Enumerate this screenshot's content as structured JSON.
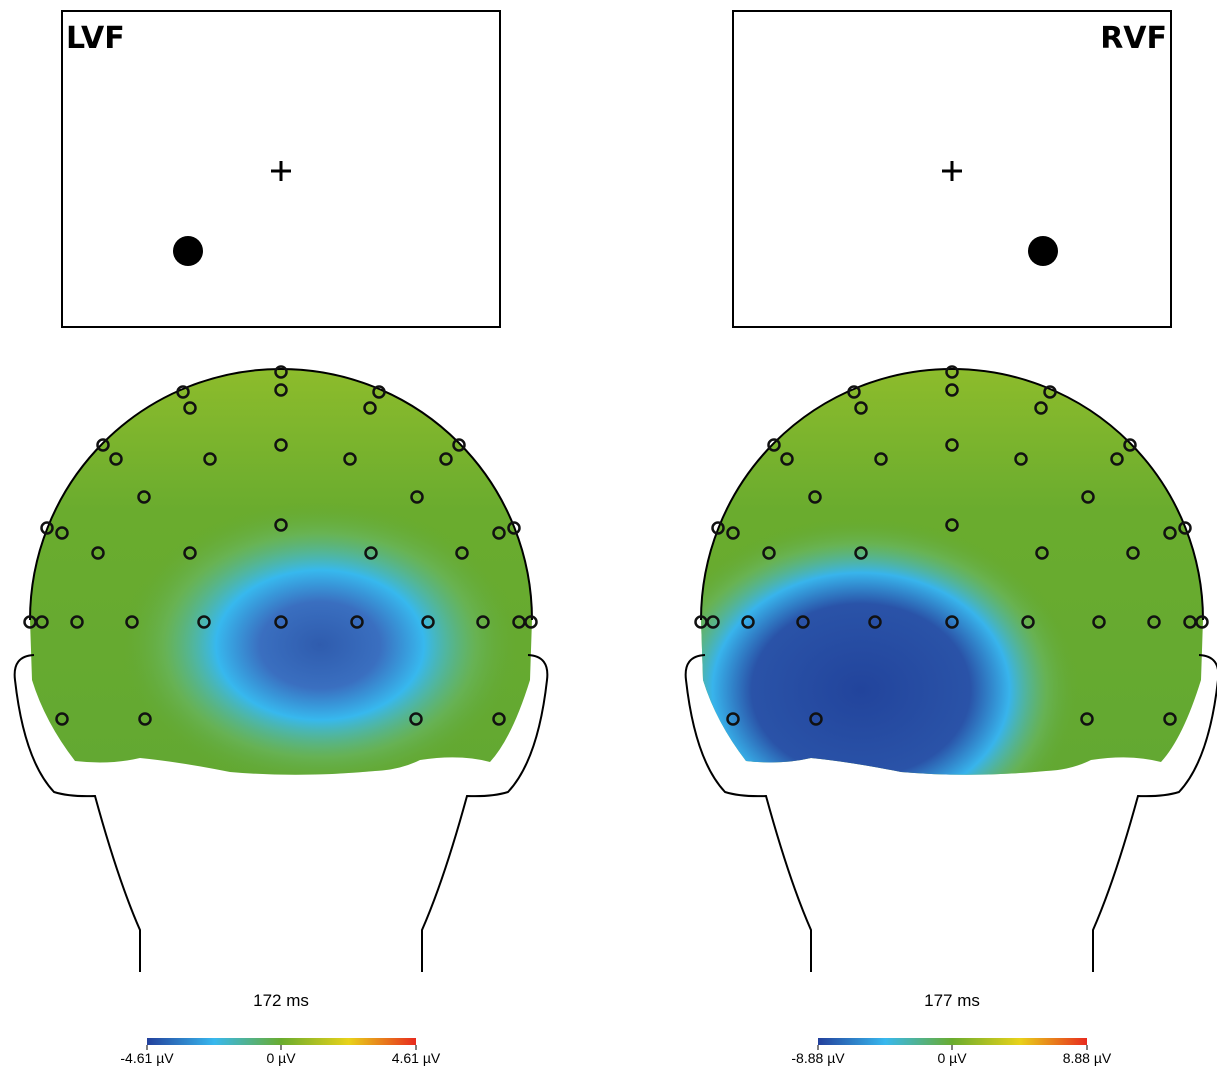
{
  "panels": [
    {
      "label": "LVF",
      "time": "172 ms",
      "colorbar": {
        "min": "-4.61 µV",
        "mid": "0 µV",
        "max": "4.61 µV"
      }
    },
    {
      "label": "RVF",
      "time": "177 ms",
      "colorbar": {
        "min": "-8.88 µV",
        "mid": "0 µV",
        "max": "8.88 µV"
      }
    }
  ]
}
